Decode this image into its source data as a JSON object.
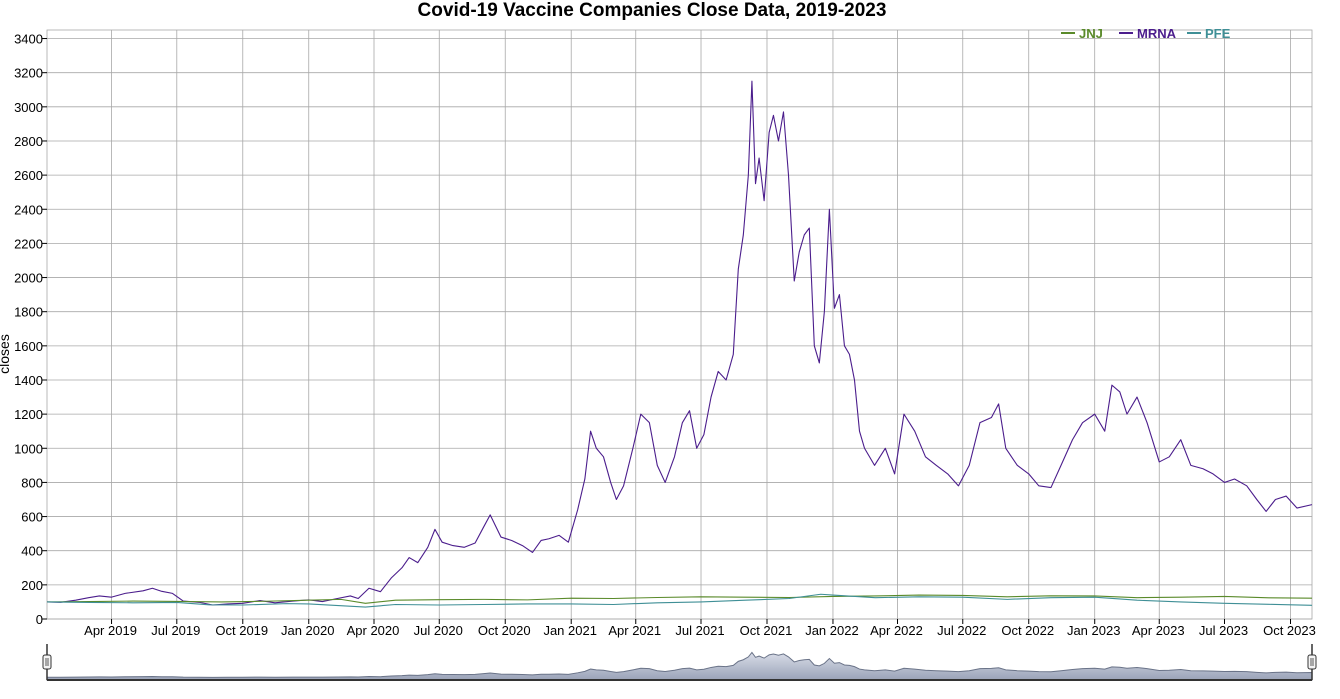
{
  "chart_data": {
    "type": "line",
    "title": "Covid-19 Vaccine Companies Close Data, 2019-2023",
    "xlabel": "",
    "ylabel": "closes",
    "xlim": [
      "2019-01-01",
      "2023-10-31"
    ],
    "ylim": [
      0,
      3450
    ],
    "yticks": [
      0,
      200,
      400,
      600,
      800,
      1000,
      1200,
      1400,
      1600,
      1800,
      2000,
      2200,
      2400,
      2600,
      2800,
      3000,
      3200,
      3400
    ],
    "xticks": [
      {
        "label": "Apr 2019",
        "date": "2019-04-01"
      },
      {
        "label": "Jul 2019",
        "date": "2019-07-01"
      },
      {
        "label": "Oct 2019",
        "date": "2019-10-01"
      },
      {
        "label": "Jan 2020",
        "date": "2020-01-01"
      },
      {
        "label": "Apr 2020",
        "date": "2020-04-01"
      },
      {
        "label": "Jul 2020",
        "date": "2020-07-01"
      },
      {
        "label": "Oct 2020",
        "date": "2020-10-01"
      },
      {
        "label": "Jan 2021",
        "date": "2021-01-01"
      },
      {
        "label": "Apr 2021",
        "date": "2021-04-01"
      },
      {
        "label": "Jul 2021",
        "date": "2021-07-01"
      },
      {
        "label": "Oct 2021",
        "date": "2021-10-01"
      },
      {
        "label": "Jan 2022",
        "date": "2022-01-01"
      },
      {
        "label": "Apr 2022",
        "date": "2022-04-01"
      },
      {
        "label": "Jul 2022",
        "date": "2022-07-01"
      },
      {
        "label": "Oct 2022",
        "date": "2022-10-01"
      },
      {
        "label": "Jan 2023",
        "date": "2023-01-01"
      },
      {
        "label": "Apr 2023",
        "date": "2023-04-01"
      },
      {
        "label": "Jul 2023",
        "date": "2023-07-01"
      },
      {
        "label": "Oct 2023",
        "date": "2023-10-01"
      }
    ],
    "grid": true,
    "legend_position": "top-right",
    "range_slider": true,
    "series": [
      {
        "name": "JNJ",
        "color": "#5a8a2a",
        "points": [
          [
            "2019-01-01",
            100
          ],
          [
            "2019-03-01",
            102
          ],
          [
            "2019-05-01",
            105
          ],
          [
            "2019-07-01",
            103
          ],
          [
            "2019-09-01",
            100
          ],
          [
            "2019-11-01",
            104
          ],
          [
            "2020-01-01",
            110
          ],
          [
            "2020-02-15",
            115
          ],
          [
            "2020-03-20",
            92
          ],
          [
            "2020-05-01",
            110
          ],
          [
            "2020-07-01",
            113
          ],
          [
            "2020-09-01",
            115
          ],
          [
            "2020-11-01",
            112
          ],
          [
            "2021-01-01",
            122
          ],
          [
            "2021-03-01",
            120
          ],
          [
            "2021-05-01",
            126
          ],
          [
            "2021-07-01",
            130
          ],
          [
            "2021-09-01",
            128
          ],
          [
            "2021-11-01",
            126
          ],
          [
            "2022-01-01",
            132
          ],
          [
            "2022-03-01",
            135
          ],
          [
            "2022-05-01",
            140
          ],
          [
            "2022-07-01",
            138
          ],
          [
            "2022-09-01",
            130
          ],
          [
            "2022-11-01",
            136
          ],
          [
            "2023-01-01",
            135
          ],
          [
            "2023-03-01",
            125
          ],
          [
            "2023-05-01",
            128
          ],
          [
            "2023-07-01",
            132
          ],
          [
            "2023-09-01",
            124
          ],
          [
            "2023-10-31",
            122
          ]
        ]
      },
      {
        "name": "MRNA",
        "color": "#4b1d8c",
        "points": [
          [
            "2019-01-01",
            100
          ],
          [
            "2019-01-20",
            98
          ],
          [
            "2019-02-10",
            110
          ],
          [
            "2019-02-28",
            125
          ],
          [
            "2019-03-15",
            135
          ],
          [
            "2019-04-01",
            128
          ],
          [
            "2019-04-20",
            150
          ],
          [
            "2019-05-15",
            165
          ],
          [
            "2019-05-28",
            180
          ],
          [
            "2019-06-10",
            162
          ],
          [
            "2019-06-25",
            150
          ],
          [
            "2019-07-10",
            105
          ],
          [
            "2019-08-01",
            98
          ],
          [
            "2019-08-20",
            82
          ],
          [
            "2019-09-10",
            88
          ],
          [
            "2019-10-01",
            92
          ],
          [
            "2019-10-25",
            108
          ],
          [
            "2019-11-15",
            95
          ],
          [
            "2019-12-10",
            105
          ],
          [
            "2020-01-01",
            112
          ],
          [
            "2020-01-20",
            102
          ],
          [
            "2020-02-10",
            120
          ],
          [
            "2020-02-28",
            135
          ],
          [
            "2020-03-10",
            120
          ],
          [
            "2020-03-25",
            180
          ],
          [
            "2020-04-10",
            160
          ],
          [
            "2020-04-25",
            240
          ],
          [
            "2020-05-10",
            300
          ],
          [
            "2020-05-20",
            360
          ],
          [
            "2020-06-01",
            330
          ],
          [
            "2020-06-15",
            420
          ],
          [
            "2020-06-25",
            525
          ],
          [
            "2020-07-05",
            450
          ],
          [
            "2020-07-20",
            430
          ],
          [
            "2020-08-05",
            420
          ],
          [
            "2020-08-20",
            445
          ],
          [
            "2020-09-01",
            540
          ],
          [
            "2020-09-10",
            610
          ],
          [
            "2020-09-25",
            480
          ],
          [
            "2020-10-10",
            460
          ],
          [
            "2020-10-25",
            430
          ],
          [
            "2020-11-08",
            390
          ],
          [
            "2020-11-20",
            460
          ],
          [
            "2020-12-01",
            470
          ],
          [
            "2020-12-15",
            490
          ],
          [
            "2020-12-28",
            450
          ],
          [
            "2021-01-10",
            640
          ],
          [
            "2021-01-20",
            820
          ],
          [
            "2021-01-28",
            1100
          ],
          [
            "2021-02-05",
            1000
          ],
          [
            "2021-02-15",
            950
          ],
          [
            "2021-02-25",
            800
          ],
          [
            "2021-03-05",
            700
          ],
          [
            "2021-03-15",
            780
          ],
          [
            "2021-03-28",
            1000
          ],
          [
            "2021-04-08",
            1200
          ],
          [
            "2021-04-20",
            1150
          ],
          [
            "2021-05-01",
            900
          ],
          [
            "2021-05-12",
            800
          ],
          [
            "2021-05-25",
            950
          ],
          [
            "2021-06-05",
            1150
          ],
          [
            "2021-06-15",
            1220
          ],
          [
            "2021-06-25",
            1000
          ],
          [
            "2021-07-05",
            1080
          ],
          [
            "2021-07-15",
            1300
          ],
          [
            "2021-07-25",
            1450
          ],
          [
            "2021-08-05",
            1400
          ],
          [
            "2021-08-15",
            1550
          ],
          [
            "2021-08-22",
            2050
          ],
          [
            "2021-08-29",
            2250
          ],
          [
            "2021-09-05",
            2600
          ],
          [
            "2021-09-10",
            3150
          ],
          [
            "2021-09-15",
            2550
          ],
          [
            "2021-09-20",
            2700
          ],
          [
            "2021-09-27",
            2450
          ],
          [
            "2021-10-04",
            2850
          ],
          [
            "2021-10-10",
            2950
          ],
          [
            "2021-10-17",
            2800
          ],
          [
            "2021-10-24",
            2970
          ],
          [
            "2021-10-31",
            2600
          ],
          [
            "2021-11-08",
            1980
          ],
          [
            "2021-11-15",
            2150
          ],
          [
            "2021-11-22",
            2250
          ],
          [
            "2021-11-29",
            2290
          ],
          [
            "2021-12-06",
            1600
          ],
          [
            "2021-12-13",
            1500
          ],
          [
            "2021-12-20",
            1800
          ],
          [
            "2021-12-27",
            2400
          ],
          [
            "2022-01-03",
            1820
          ],
          [
            "2022-01-10",
            1900
          ],
          [
            "2022-01-17",
            1600
          ],
          [
            "2022-01-24",
            1550
          ],
          [
            "2022-01-31",
            1400
          ],
          [
            "2022-02-07",
            1100
          ],
          [
            "2022-02-14",
            1000
          ],
          [
            "2022-02-28",
            900
          ],
          [
            "2022-03-15",
            1000
          ],
          [
            "2022-03-28",
            850
          ],
          [
            "2022-04-10",
            1200
          ],
          [
            "2022-04-25",
            1100
          ],
          [
            "2022-05-10",
            950
          ],
          [
            "2022-05-25",
            900
          ],
          [
            "2022-06-10",
            850
          ],
          [
            "2022-06-25",
            780
          ],
          [
            "2022-07-10",
            900
          ],
          [
            "2022-07-25",
            1150
          ],
          [
            "2022-08-10",
            1180
          ],
          [
            "2022-08-20",
            1260
          ],
          [
            "2022-08-30",
            1000
          ],
          [
            "2022-09-15",
            900
          ],
          [
            "2022-10-01",
            850
          ],
          [
            "2022-10-15",
            780
          ],
          [
            "2022-11-01",
            770
          ],
          [
            "2022-11-15",
            900
          ],
          [
            "2022-12-01",
            1050
          ],
          [
            "2022-12-15",
            1150
          ],
          [
            "2023-01-01",
            1200
          ],
          [
            "2023-01-15",
            1100
          ],
          [
            "2023-01-25",
            1370
          ],
          [
            "2023-02-05",
            1330
          ],
          [
            "2023-02-15",
            1200
          ],
          [
            "2023-03-01",
            1300
          ],
          [
            "2023-03-15",
            1150
          ],
          [
            "2023-04-01",
            920
          ],
          [
            "2023-04-15",
            950
          ],
          [
            "2023-05-01",
            1050
          ],
          [
            "2023-05-15",
            900
          ],
          [
            "2023-06-01",
            880
          ],
          [
            "2023-06-15",
            850
          ],
          [
            "2023-07-01",
            800
          ],
          [
            "2023-07-15",
            820
          ],
          [
            "2023-08-01",
            780
          ],
          [
            "2023-08-15",
            700
          ],
          [
            "2023-08-28",
            630
          ],
          [
            "2023-09-10",
            700
          ],
          [
            "2023-09-25",
            720
          ],
          [
            "2023-10-10",
            650
          ],
          [
            "2023-10-31",
            670
          ]
        ]
      },
      {
        "name": "PFE",
        "color": "#3f8f96",
        "points": [
          [
            "2019-01-01",
            100
          ],
          [
            "2019-03-01",
            97
          ],
          [
            "2019-05-01",
            95
          ],
          [
            "2019-07-01",
            97
          ],
          [
            "2019-08-15",
            83
          ],
          [
            "2019-10-01",
            82
          ],
          [
            "2019-12-01",
            90
          ],
          [
            "2020-01-01",
            88
          ],
          [
            "2020-03-20",
            70
          ],
          [
            "2020-05-01",
            85
          ],
          [
            "2020-07-01",
            82
          ],
          [
            "2020-09-01",
            85
          ],
          [
            "2020-11-01",
            88
          ],
          [
            "2021-01-01",
            88
          ],
          [
            "2021-03-01",
            85
          ],
          [
            "2021-05-01",
            95
          ],
          [
            "2021-07-01",
            100
          ],
          [
            "2021-09-01",
            110
          ],
          [
            "2021-11-01",
            120
          ],
          [
            "2021-12-15",
            145
          ],
          [
            "2022-01-01",
            140
          ],
          [
            "2022-03-01",
            125
          ],
          [
            "2022-05-01",
            130
          ],
          [
            "2022-07-01",
            128
          ],
          [
            "2022-09-01",
            115
          ],
          [
            "2022-11-01",
            125
          ],
          [
            "2023-01-01",
            128
          ],
          [
            "2023-03-01",
            110
          ],
          [
            "2023-05-01",
            100
          ],
          [
            "2023-07-01",
            92
          ],
          [
            "2023-09-01",
            86
          ],
          [
            "2023-10-31",
            80
          ]
        ]
      }
    ]
  }
}
